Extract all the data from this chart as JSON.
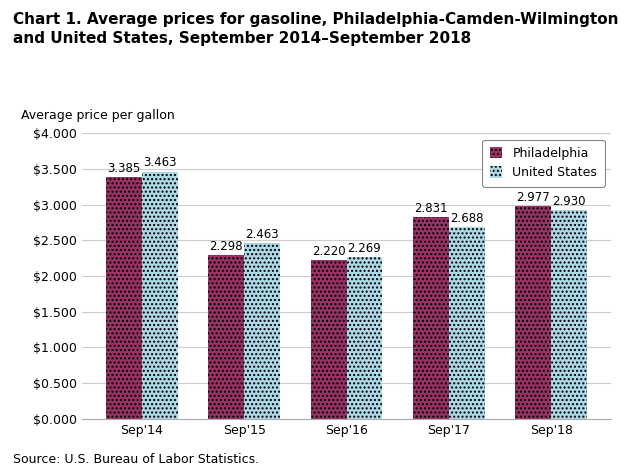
{
  "title_line1": "Chart 1. Average prices for gasoline, Philadelphia-Camden-Wilmington",
  "title_line2": "and United States, September 2014–September 2018",
  "ylabel": "Average price per gallon",
  "source": "Source: U.S. Bureau of Labor Statistics.",
  "categories": [
    "Sep'14",
    "Sep'15",
    "Sep'16",
    "Sep'17",
    "Sep'18"
  ],
  "philadelphia": [
    3.385,
    2.298,
    2.22,
    2.831,
    2.977
  ],
  "united_states": [
    3.463,
    2.463,
    2.269,
    2.688,
    2.93
  ],
  "philly_color": "#993366",
  "us_color": "#ADD8E6",
  "ylim": [
    0,
    4.0
  ],
  "yticks": [
    0.0,
    0.5,
    1.0,
    1.5,
    2.0,
    2.5,
    3.0,
    3.5,
    4.0
  ],
  "legend_labels": [
    "Philadelphia",
    "United States"
  ],
  "bar_width": 0.35,
  "title_fontsize": 11,
  "axis_label_fontsize": 9,
  "tick_fontsize": 9,
  "bar_label_fontsize": 8.5,
  "source_fontsize": 9,
  "legend_marker_size": 8,
  "grid_color": "#cccccc",
  "spine_color": "#aaaaaa"
}
